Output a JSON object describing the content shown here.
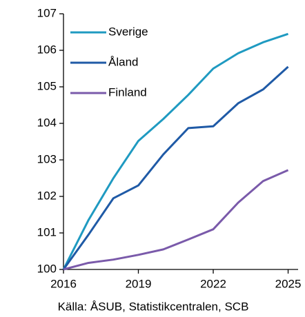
{
  "chart_data": {
    "type": "line",
    "x": [
      2016,
      2017,
      2018,
      2019,
      2020,
      2021,
      2022,
      2023,
      2024,
      2025
    ],
    "series": [
      {
        "name": "Sverige",
        "color": "#1f9ac1",
        "values": [
          100,
          101.35,
          102.5,
          103.52,
          104.12,
          104.78,
          105.5,
          105.92,
          106.22,
          106.45
        ]
      },
      {
        "name": "Åland",
        "color": "#1f5aa6",
        "values": [
          100,
          100.95,
          101.95,
          102.3,
          103.15,
          103.87,
          103.92,
          104.55,
          104.93,
          105.55
        ]
      },
      {
        "name": "Finland",
        "color": "#7a5aaa",
        "values": [
          100,
          100.18,
          100.27,
          100.4,
          100.55,
          100.82,
          101.1,
          101.83,
          102.42,
          102.72
        ]
      }
    ],
    "xlim": [
      2016,
      2025.4
    ],
    "xticks": [
      2016,
      2019,
      2022,
      2025
    ],
    "ylim": [
      100,
      107
    ],
    "yticks": [
      100,
      101,
      102,
      103,
      104,
      105,
      106,
      107
    ],
    "legend": "top-left",
    "source": "Källa: ÅSUB, Statistikcentralen, SCB"
  }
}
